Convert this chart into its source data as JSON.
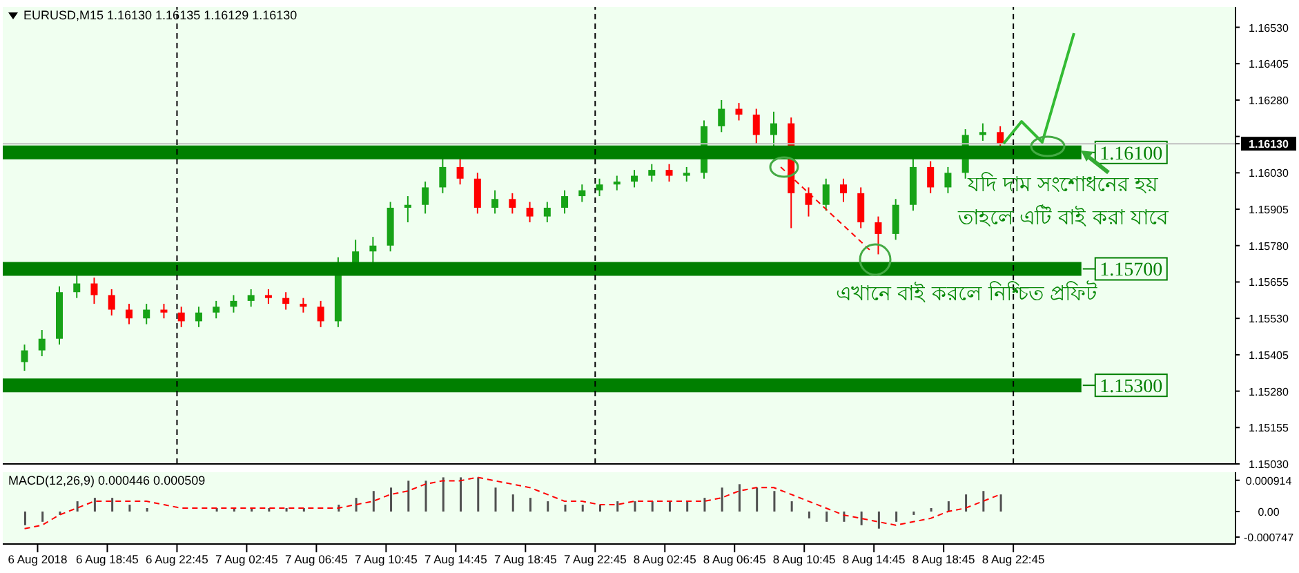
{
  "chart_data": [
    {
      "type": "candlestick",
      "title": "EURUSD,M15 1.16130 1.16135 1.16129 1.16130",
      "x": [
        "2018-08-06T14:00",
        "2018-08-06T15:00",
        "2018-08-06T16:00",
        "2018-08-06T17:00",
        "2018-08-06T18:00",
        "2018-08-06T19:00",
        "2018-08-06T20:00",
        "2018-08-06T21:00",
        "2018-08-06T22:00",
        "2018-08-06T23:00",
        "2018-08-07T00:00",
        "2018-08-07T01:00",
        "2018-08-07T02:00",
        "2018-08-07T03:00",
        "2018-08-07T04:00",
        "2018-08-07T05:00",
        "2018-08-07T06:00",
        "2018-08-07T07:00",
        "2018-08-07T08:00",
        "2018-08-07T09:00",
        "2018-08-07T10:00",
        "2018-08-07T11:00",
        "2018-08-07T12:00",
        "2018-08-07T13:00",
        "2018-08-07T14:00",
        "2018-08-07T15:00",
        "2018-08-07T16:00",
        "2018-08-07T17:00",
        "2018-08-07T18:00",
        "2018-08-07T19:00",
        "2018-08-07T20:00",
        "2018-08-07T21:00",
        "2018-08-07T22:00",
        "2018-08-07T23:00",
        "2018-08-08T00:00",
        "2018-08-08T01:00",
        "2018-08-08T02:00",
        "2018-08-08T03:00",
        "2018-08-08T04:00",
        "2018-08-08T05:00",
        "2018-08-08T06:00",
        "2018-08-08T07:00",
        "2018-08-08T08:00",
        "2018-08-08T09:00",
        "2018-08-08T10:00",
        "2018-08-08T11:00",
        "2018-08-08T12:00",
        "2018-08-08T13:00",
        "2018-08-08T14:00",
        "2018-08-08T15:00",
        "2018-08-08T16:00",
        "2018-08-08T17:00",
        "2018-08-08T18:00",
        "2018-08-08T19:00",
        "2018-08-08T20:00",
        "2018-08-08T21:00",
        "2018-08-08T22:00"
      ],
      "ohlc": [
        [
          1.1538,
          1.1544,
          1.1535,
          1.1542
        ],
        [
          1.1542,
          1.1549,
          1.154,
          1.1546
        ],
        [
          1.1546,
          1.1564,
          1.1544,
          1.1562
        ],
        [
          1.1562,
          1.157,
          1.156,
          1.1565
        ],
        [
          1.1565,
          1.1567,
          1.1558,
          1.1561
        ],
        [
          1.1561,
          1.1563,
          1.1554,
          1.1556
        ],
        [
          1.1556,
          1.1558,
          1.1551,
          1.1553
        ],
        [
          1.1553,
          1.1558,
          1.1551,
          1.1556
        ],
        [
          1.1556,
          1.1558,
          1.1553,
          1.1555
        ],
        [
          1.1555,
          1.1557,
          1.155,
          1.1552
        ],
        [
          1.1552,
          1.1557,
          1.155,
          1.1555
        ],
        [
          1.1555,
          1.1559,
          1.1553,
          1.1557
        ],
        [
          1.1557,
          1.1561,
          1.1555,
          1.1559
        ],
        [
          1.1559,
          1.1563,
          1.1557,
          1.1561
        ],
        [
          1.1561,
          1.1563,
          1.1558,
          1.156
        ],
        [
          1.156,
          1.1562,
          1.1556,
          1.1558
        ],
        [
          1.1558,
          1.156,
          1.1555,
          1.1557
        ],
        [
          1.1557,
          1.1559,
          1.155,
          1.1552
        ],
        [
          1.1552,
          1.1574,
          1.155,
          1.1572
        ],
        [
          1.1572,
          1.158,
          1.1568,
          1.1576
        ],
        [
          1.1576,
          1.1581,
          1.1572,
          1.1578
        ],
        [
          1.1578,
          1.1593,
          1.1576,
          1.1591
        ],
        [
          1.1591,
          1.1595,
          1.1586,
          1.1592
        ],
        [
          1.1592,
          1.16,
          1.1589,
          1.1598
        ],
        [
          1.1598,
          1.1609,
          1.1596,
          1.1605
        ],
        [
          1.1605,
          1.1608,
          1.1599,
          1.1601
        ],
        [
          1.1601,
          1.1603,
          1.1589,
          1.1591
        ],
        [
          1.1591,
          1.1597,
          1.1589,
          1.1594
        ],
        [
          1.1594,
          1.1596,
          1.1589,
          1.1591
        ],
        [
          1.1591,
          1.1593,
          1.1586,
          1.1588
        ],
        [
          1.1588,
          1.1593,
          1.1586,
          1.1591
        ],
        [
          1.1591,
          1.1597,
          1.1589,
          1.1595
        ],
        [
          1.1595,
          1.1599,
          1.1593,
          1.1597
        ],
        [
          1.1597,
          1.1601,
          1.1595,
          1.1599
        ],
        [
          1.1599,
          1.1602,
          1.1597,
          1.16
        ],
        [
          1.16,
          1.1604,
          1.1598,
          1.1602
        ],
        [
          1.1602,
          1.1606,
          1.16,
          1.1604
        ],
        [
          1.1604,
          1.1606,
          1.16,
          1.1602
        ],
        [
          1.1602,
          1.1605,
          1.16,
          1.1603
        ],
        [
          1.1603,
          1.1621,
          1.1601,
          1.1619
        ],
        [
          1.1619,
          1.1628,
          1.1617,
          1.1625
        ],
        [
          1.1625,
          1.1627,
          1.1621,
          1.1623
        ],
        [
          1.1623,
          1.1625,
          1.1613,
          1.1616
        ],
        [
          1.1616,
          1.1624,
          1.1612,
          1.162
        ],
        [
          1.162,
          1.1622,
          1.1584,
          1.1596
        ],
        [
          1.1596,
          1.1598,
          1.1588,
          1.1592
        ],
        [
          1.1592,
          1.1601,
          1.159,
          1.1599
        ],
        [
          1.1599,
          1.1601,
          1.1593,
          1.1596
        ],
        [
          1.1596,
          1.1598,
          1.1584,
          1.1586
        ],
        [
          1.1586,
          1.1588,
          1.1575,
          1.1582
        ],
        [
          1.1582,
          1.1594,
          1.158,
          1.1592
        ],
        [
          1.1592,
          1.1609,
          1.159,
          1.1605
        ],
        [
          1.1605,
          1.1607,
          1.1596,
          1.1598
        ],
        [
          1.1598,
          1.1605,
          1.1596,
          1.1603
        ],
        [
          1.1603,
          1.1618,
          1.1601,
          1.1616
        ],
        [
          1.1616,
          1.162,
          1.1614,
          1.1617
        ],
        [
          1.1617,
          1.1619,
          1.1611,
          1.1613
        ]
      ],
      "colors": [
        "#17a317",
        "#17a317",
        "#17a317",
        "#17a317",
        "#ff0000",
        "#ff0000",
        "#ff0000",
        "#17a317",
        "#ff0000",
        "#ff0000",
        "#17a317",
        "#17a317",
        "#17a317",
        "#17a317",
        "#ff0000",
        "#ff0000",
        "#ff0000",
        "#ff0000",
        "#17a317",
        "#17a317",
        "#17a317",
        "#17a317",
        "#17a317",
        "#17a317",
        "#17a317",
        "#ff0000",
        "#ff0000",
        "#17a317",
        "#ff0000",
        "#ff0000",
        "#17a317",
        "#17a317",
        "#17a317",
        "#17a317",
        "#17a317",
        "#17a317",
        "#17a317",
        "#ff0000",
        "#17a317",
        "#17a317",
        "#17a317",
        "#ff0000",
        "#ff0000",
        "#17a317",
        "#ff0000",
        "#ff0000",
        "#17a317",
        "#ff0000",
        "#ff0000",
        "#ff0000",
        "#17a317",
        "#17a317",
        "#ff0000",
        "#17a317",
        "#17a317",
        "#17a317",
        "#ff0000"
      ],
      "series": [
        {
          "type": "line",
          "color": "#ff0000",
          "line_style": "dashed",
          "x": [
            "2018-08-08T09:24",
            "2018-08-08T14:36"
          ],
          "values": [
            1.1605,
            1.1576
          ]
        }
      ],
      "xlim": [
        "2018-08-06T12:45",
        "2018-08-09T11:30"
      ],
      "ylim": [
        1.1503,
        1.166
      ],
      "yticks": [
        {
          "value": 1.1503,
          "label": "1.15030"
        },
        {
          "value": 1.15155,
          "label": "1.15155"
        },
        {
          "value": 1.1528,
          "label": "1.15280"
        },
        {
          "value": 1.15405,
          "label": "1.15405"
        },
        {
          "value": 1.1553,
          "label": "1.15530"
        },
        {
          "value": 1.15655,
          "label": "1.15655"
        },
        {
          "value": 1.1578,
          "label": "1.15780"
        },
        {
          "value": 1.15905,
          "label": "1.15905"
        },
        {
          "value": 1.1603,
          "label": "1.16030"
        },
        {
          "value": 1.16155,
          "label": null
        },
        {
          "value": 1.1613,
          "label": "1.16130"
        },
        {
          "value": 1.1628,
          "label": "1.16280"
        },
        {
          "value": 1.16405,
          "label": "1.16405"
        },
        {
          "value": 1.1653,
          "label": "1.16530"
        }
      ],
      "tick_labels": "y",
      "ref_lines": [
        {
          "axis": "y",
          "value": 1.161,
          "label": "1.16100",
          "color": "#007f00"
        },
        {
          "axis": "y",
          "value": 1.157,
          "label": "1.15700",
          "color": "#007f00"
        },
        {
          "axis": "y",
          "value": 1.153,
          "label": "1.15300",
          "color": "#007f00"
        },
        {
          "axis": "y",
          "value": 1.1613,
          "color": "#c0c0c0"
        },
        {
          "axis": "x",
          "value": "2018-08-06T22:45",
          "color": "#000000",
          "line_style": "dashed"
        },
        {
          "axis": "x",
          "value": "2018-08-07T22:45",
          "color": "#000000",
          "line_style": "dashed"
        },
        {
          "axis": "x",
          "value": "2018-08-08T22:45",
          "color": "#000000",
          "line_style": "dashed"
        }
      ],
      "annotations": [
        "যদি দাম সংশোধনের হয়",
        "তাহলে এটি বাই করা যাবে",
        "এখানে বাই করলে নিশ্চিত প্রফিট"
      ]
    },
    {
      "type": "bar",
      "title": "MACD(12,26,9) 0.000446 0.000509",
      "x": [
        "2018-08-06T14:00",
        "2018-08-06T15:00",
        "2018-08-06T16:00",
        "2018-08-06T17:00",
        "2018-08-06T18:00",
        "2018-08-06T19:00",
        "2018-08-06T20:00",
        "2018-08-06T21:00",
        "2018-08-06T22:00",
        "2018-08-06T23:00",
        "2018-08-07T00:00",
        "2018-08-07T01:00",
        "2018-08-07T02:00",
        "2018-08-07T03:00",
        "2018-08-07T04:00",
        "2018-08-07T05:00",
        "2018-08-07T06:00",
        "2018-08-07T07:00",
        "2018-08-07T08:00",
        "2018-08-07T09:00",
        "2018-08-07T10:00",
        "2018-08-07T11:00",
        "2018-08-07T12:00",
        "2018-08-07T13:00",
        "2018-08-07T14:00",
        "2018-08-07T15:00",
        "2018-08-07T16:00",
        "2018-08-07T17:00",
        "2018-08-07T18:00",
        "2018-08-07T19:00",
        "2018-08-07T20:00",
        "2018-08-07T21:00",
        "2018-08-07T22:00",
        "2018-08-07T23:00",
        "2018-08-08T00:00",
        "2018-08-08T01:00",
        "2018-08-08T02:00",
        "2018-08-08T03:00",
        "2018-08-08T04:00",
        "2018-08-08T05:00",
        "2018-08-08T06:00",
        "2018-08-08T07:00",
        "2018-08-08T08:00",
        "2018-08-08T09:00",
        "2018-08-08T10:00",
        "2018-08-08T11:00",
        "2018-08-08T12:00",
        "2018-08-08T13:00",
        "2018-08-08T14:00",
        "2018-08-08T15:00",
        "2018-08-08T16:00",
        "2018-08-08T17:00",
        "2018-08-08T18:00",
        "2018-08-08T19:00",
        "2018-08-08T20:00",
        "2018-08-08T21:00",
        "2018-08-08T22:00"
      ],
      "series": [
        {
          "type": "bar",
          "color": "#505050",
          "values": [
            -0.0004,
            -0.0003,
            -0.0001,
            0.0003,
            0.0004,
            0.0004,
            0.0002,
            0.0001,
            0,
            0,
            0,
            0.0001,
            0.0001,
            0.0001,
            0.0001,
            0.0001,
            0.0001,
            0,
            0.0002,
            0.0004,
            0.0006,
            0.0007,
            0.0009,
            0.0009,
            0.001,
            0.001,
            0.001,
            0.0007,
            0.0005,
            0.0004,
            0.0003,
            0.0002,
            0.0002,
            0.0002,
            0.0003,
            0.0003,
            0.0003,
            0.0003,
            0.0003,
            0.0004,
            0.0007,
            0.0008,
            0.0007,
            0.0006,
            0.0003,
            -0.0002,
            -0.0003,
            -0.0003,
            -0.0004,
            -0.0005,
            -0.0003,
            -0.0001,
            0.0001,
            0.0003,
            0.0005,
            0.0006,
            0.0005
          ]
        },
        {
          "type": "line",
          "color": "#ff0000",
          "line_style": "dashed",
          "values": [
            -0.0005,
            -0.0004,
            -0.0001,
            0.0001,
            0.0003,
            0.0003,
            0.0003,
            0.0003,
            0.0002,
            0.0001,
            0.0001,
            0.0001,
            0.0001,
            0.0001,
            0.0001,
            0.0001,
            0.0001,
            0.0001,
            0.0001,
            0.0002,
            0.0003,
            0.0005,
            0.0006,
            0.0008,
            0.0009,
            0.0009,
            0.001,
            0.0009,
            0.0008,
            0.0007,
            0.0005,
            0.0003,
            0.0003,
            0.0002,
            0.0002,
            0.0003,
            0.0003,
            0.0003,
            0.0003,
            0.0003,
            0.0004,
            0.0006,
            0.0007,
            0.0007,
            0.0005,
            0.0003,
            0.0001,
            -0.0001,
            -0.0002,
            -0.0003,
            -0.0004,
            -0.0003,
            -0.0002,
            0,
            0.0001,
            0.0003,
            0.0005
          ]
        }
      ],
      "xlim": [
        "2018-08-06T12:45",
        "2018-08-09T11:30"
      ],
      "ylim": [
        -0.00095,
        0.00115
      ],
      "yticks": [
        0.000914,
        {
          "value": 0,
          "label": "0.00"
        },
        -0.000747
      ],
      "xticks": [
        {
          "value": "2018-08-06T14:45",
          "label": "6 Aug 2018"
        },
        {
          "value": "2018-08-06T18:45",
          "label": "6 Aug 18:45"
        },
        {
          "value": "2018-08-06T22:45",
          "label": "6 Aug 22:45"
        },
        {
          "value": "2018-08-07T02:45",
          "label": "7 Aug 02:45"
        },
        {
          "value": "2018-08-07T06:45",
          "label": "7 Aug 06:45"
        },
        {
          "value": "2018-08-07T10:45",
          "label": "7 Aug 10:45"
        },
        {
          "value": "2018-08-07T14:45",
          "label": "7 Aug 14:45"
        },
        {
          "value": "2018-08-07T18:45",
          "label": "7 Aug 18:45"
        },
        {
          "value": "2018-08-07T22:45",
          "label": "7 Aug 22:45"
        },
        {
          "value": "2018-08-08T02:45",
          "label": "8 Aug 02:45"
        },
        {
          "value": "2018-08-08T06:45",
          "label": "8 Aug 06:45"
        },
        {
          "value": "2018-08-08T10:45",
          "label": "8 Aug 10:45"
        },
        {
          "value": "2018-08-08T14:45",
          "label": "8 Aug 14:45"
        },
        {
          "value": "2018-08-08T18:45",
          "label": "8 Aug 18:45"
        },
        {
          "value": "2018-08-08T22:45",
          "label": "8 Aug 22:45"
        }
      ]
    }
  ]
}
